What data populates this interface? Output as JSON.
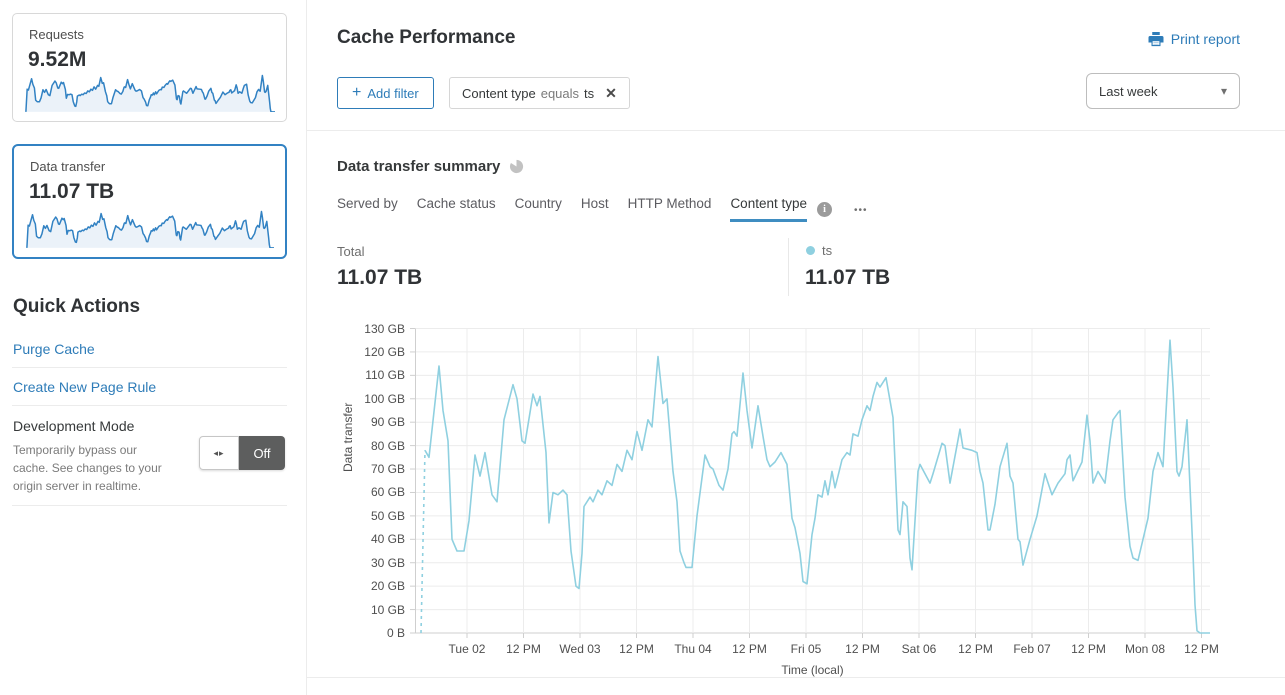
{
  "colors": {
    "link_blue": "#2e7cb8",
    "accent_border": "#3282c3",
    "chart_line": "#8fd0e0",
    "sparkline_stroke": "#3282c3",
    "sparkline_fill": "#ebf2f9",
    "tab_underline": "#3f8dc1",
    "grid": "#ececec",
    "axis": "#cfcfcf"
  },
  "icons": {
    "plus": "+",
    "close": "✕",
    "caret_down": "▾",
    "ellipsis": "•••",
    "toggle_arrows": "◂▸",
    "info": "i"
  },
  "sidebar": {
    "requests_card": {
      "label": "Requests",
      "value": "9.52M"
    },
    "data_transfer_card": {
      "label": "Data transfer",
      "value": "11.07 TB"
    },
    "quick_actions_title": "Quick Actions",
    "purge_cache": "Purge Cache",
    "create_page_rule": "Create New Page Rule",
    "dev_mode": {
      "title": "Development Mode",
      "description": "Temporarily bypass our cache. See changes to your origin server in realtime.",
      "toggle_state": "Off"
    }
  },
  "header": {
    "title": "Cache Performance",
    "print_report": "Print report",
    "add_filter": "Add filter",
    "filter_chip": {
      "field": "Content type",
      "operator": "equals",
      "value": "ts"
    },
    "time_range": "Last week"
  },
  "summary": {
    "title": "Data transfer summary",
    "tabs": [
      "Served by",
      "Cache status",
      "Country",
      "Host",
      "HTTP Method",
      "Content type"
    ],
    "active_tab": "Content type",
    "total_label": "Total",
    "total_value": "11.07 TB",
    "legend": {
      "name": "ts",
      "value": "11.07 TB"
    }
  },
  "chart_data": {
    "type": "line",
    "title": "Data transfer summary",
    "xlabel": "Time (local)",
    "ylabel": "Data transfer",
    "unit": "GB",
    "ylim": [
      0,
      130
    ],
    "grid": true,
    "y_ticks": [
      "130 GB",
      "120 GB",
      "110 GB",
      "100 GB",
      "90 GB",
      "80 GB",
      "70 GB",
      "60 GB",
      "50 GB",
      "40 GB",
      "30 GB",
      "20 GB",
      "10 GB",
      "0 B"
    ],
    "x_ticks": [
      "Tue 02",
      "12 PM",
      "Wed 03",
      "12 PM",
      "Thu 04",
      "12 PM",
      "Fri 05",
      "12 PM",
      "Sat 06",
      "12 PM",
      "Feb 07",
      "12 PM",
      "Mon 08",
      "12 PM"
    ],
    "series": [
      {
        "name": "ts",
        "total": "11.07 TB",
        "leading_dashed": [
          [
            6,
            0
          ],
          [
            10,
            78
          ]
        ],
        "points": [
          [
            10,
            78
          ],
          [
            14,
            75
          ],
          [
            24,
            114
          ],
          [
            28,
            95
          ],
          [
            33,
            82
          ],
          [
            37,
            40
          ],
          [
            42,
            35
          ],
          [
            49,
            35
          ],
          [
            54,
            48
          ],
          [
            60,
            76
          ],
          [
            65,
            67
          ],
          [
            70,
            77
          ],
          [
            77,
            59
          ],
          [
            82,
            56
          ],
          [
            89,
            91
          ],
          [
            98,
            106
          ],
          [
            102,
            100
          ],
          [
            107,
            82
          ],
          [
            110,
            81
          ],
          [
            118,
            102
          ],
          [
            122,
            97
          ],
          [
            125,
            101
          ],
          [
            131,
            77
          ],
          [
            134,
            47
          ],
          [
            138,
            60
          ],
          [
            143,
            59
          ],
          [
            148,
            61
          ],
          [
            152,
            59
          ],
          [
            156,
            35
          ],
          [
            161,
            20
          ],
          [
            164,
            19
          ],
          [
            167,
            34
          ],
          [
            169,
            54
          ],
          [
            175,
            58
          ],
          [
            178,
            56
          ],
          [
            183,
            61
          ],
          [
            187,
            59
          ],
          [
            192,
            65
          ],
          [
            197,
            63
          ],
          [
            202,
            72
          ],
          [
            207,
            69
          ],
          [
            212,
            78
          ],
          [
            217,
            74
          ],
          [
            222,
            86
          ],
          [
            227,
            78
          ],
          [
            233,
            91
          ],
          [
            237,
            88
          ],
          [
            243,
            118
          ],
          [
            248,
            98
          ],
          [
            252,
            100
          ],
          [
            258,
            69
          ],
          [
            262,
            56
          ],
          [
            265,
            35
          ],
          [
            269,
            30
          ],
          [
            271,
            28
          ],
          [
            277,
            28
          ],
          [
            282,
            50
          ],
          [
            290,
            76
          ],
          [
            295,
            71
          ],
          [
            298,
            70
          ],
          [
            304,
            63
          ],
          [
            308,
            61
          ],
          [
            313,
            70
          ],
          [
            317,
            85
          ],
          [
            319,
            86
          ],
          [
            322,
            84
          ],
          [
            328,
            111
          ],
          [
            332,
            95
          ],
          [
            337,
            79
          ],
          [
            343,
            97
          ],
          [
            348,
            84
          ],
          [
            352,
            74
          ],
          [
            355,
            71
          ],
          [
            360,
            73
          ],
          [
            366,
            77
          ],
          [
            372,
            72
          ],
          [
            377,
            49
          ],
          [
            380,
            45
          ],
          [
            385,
            34
          ],
          [
            388,
            22
          ],
          [
            392,
            21
          ],
          [
            397,
            42
          ],
          [
            400,
            49
          ],
          [
            403,
            59
          ],
          [
            407,
            58
          ],
          [
            410,
            65
          ],
          [
            413,
            59
          ],
          [
            417,
            69
          ],
          [
            420,
            62
          ],
          [
            423,
            67
          ],
          [
            427,
            74
          ],
          [
            432,
            77
          ],
          [
            435,
            76
          ],
          [
            438,
            85
          ],
          [
            443,
            84
          ],
          [
            447,
            91
          ],
          [
            452,
            97
          ],
          [
            455,
            95
          ],
          [
            458,
            101
          ],
          [
            462,
            107
          ],
          [
            465,
            105
          ],
          [
            471,
            109
          ],
          [
            478,
            92
          ],
          [
            483,
            44
          ],
          [
            485,
            42
          ],
          [
            488,
            56
          ],
          [
            492,
            54
          ],
          [
            495,
            32
          ],
          [
            497,
            27
          ],
          [
            503,
            69
          ],
          [
            505,
            72
          ],
          [
            515,
            64
          ],
          [
            518,
            68
          ],
          [
            527,
            81
          ],
          [
            530,
            80
          ],
          [
            535,
            64
          ],
          [
            545,
            87
          ],
          [
            548,
            79
          ],
          [
            557,
            78
          ],
          [
            562,
            77
          ],
          [
            565,
            69
          ],
          [
            568,
            64
          ],
          [
            573,
            44
          ],
          [
            575,
            44
          ],
          [
            580,
            55
          ],
          [
            585,
            71
          ],
          [
            592,
            81
          ],
          [
            595,
            67
          ],
          [
            598,
            64
          ],
          [
            603,
            40
          ],
          [
            605,
            39
          ],
          [
            608,
            29
          ],
          [
            615,
            40
          ],
          [
            622,
            50
          ],
          [
            630,
            68
          ],
          [
            637,
            59
          ],
          [
            643,
            64
          ],
          [
            650,
            68
          ],
          [
            652,
            74
          ],
          [
            655,
            76
          ],
          [
            658,
            65
          ],
          [
            667,
            73
          ],
          [
            672,
            93
          ],
          [
            675,
            82
          ],
          [
            678,
            64
          ],
          [
            683,
            69
          ],
          [
            690,
            64
          ],
          [
            695,
            82
          ],
          [
            698,
            91
          ],
          [
            703,
            94
          ],
          [
            705,
            95
          ],
          [
            710,
            58
          ],
          [
            715,
            37
          ],
          [
            718,
            32
          ],
          [
            723,
            31
          ],
          [
            733,
            49
          ],
          [
            738,
            69
          ],
          [
            743,
            77
          ],
          [
            748,
            71
          ],
          [
            755,
            125
          ],
          [
            758,
            105
          ],
          [
            762,
            69
          ],
          [
            764,
            67
          ],
          [
            767,
            71
          ],
          [
            772,
            91
          ],
          [
            778,
            34
          ],
          [
            780,
            12
          ],
          [
            782,
            1
          ],
          [
            785,
            0
          ],
          [
            795,
            0
          ]
        ]
      }
    ]
  }
}
